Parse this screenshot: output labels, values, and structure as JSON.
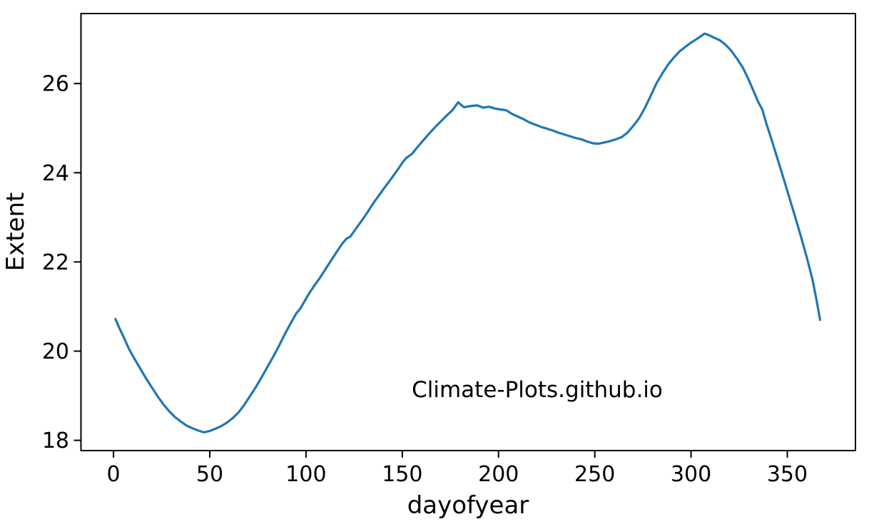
{
  "chart_data": {
    "type": "line",
    "title": "",
    "xlabel": "dayofyear",
    "ylabel": "Extent",
    "annotation": "Climate-Plots.github.io",
    "line_color": "#1f77b4",
    "axis_color": "#000000",
    "background_color": "#ffffff",
    "grid": false,
    "legend": "none",
    "xlim": [
      -16.9,
      385.4
    ],
    "ylim": [
      17.77,
      27.57
    ],
    "xticks": [
      0,
      50,
      100,
      150,
      200,
      250,
      300,
      350
    ],
    "yticks": [
      18,
      20,
      22,
      24,
      26
    ],
    "series": [
      {
        "name": "Extent",
        "points": [
          [
            1,
            20.72
          ],
          [
            3,
            20.52
          ],
          [
            5,
            20.34
          ],
          [
            8,
            20.05
          ],
          [
            11,
            19.82
          ],
          [
            14,
            19.6
          ],
          [
            17,
            19.38
          ],
          [
            20,
            19.18
          ],
          [
            23,
            18.98
          ],
          [
            26,
            18.8
          ],
          [
            29,
            18.65
          ],
          [
            32,
            18.52
          ],
          [
            35,
            18.42
          ],
          [
            38,
            18.33
          ],
          [
            41,
            18.27
          ],
          [
            44,
            18.22
          ],
          [
            47,
            18.18
          ],
          [
            50,
            18.21
          ],
          [
            53,
            18.26
          ],
          [
            56,
            18.32
          ],
          [
            59,
            18.4
          ],
          [
            62,
            18.5
          ],
          [
            65,
            18.63
          ],
          [
            68,
            18.8
          ],
          [
            71,
            19.0
          ],
          [
            74,
            19.2
          ],
          [
            77,
            19.42
          ],
          [
            80,
            19.65
          ],
          [
            83,
            19.88
          ],
          [
            86,
            20.12
          ],
          [
            89,
            20.38
          ],
          [
            92,
            20.62
          ],
          [
            95,
            20.85
          ],
          [
            97,
            20.95
          ],
          [
            99,
            21.1
          ],
          [
            101,
            21.25
          ],
          [
            104,
            21.45
          ],
          [
            107,
            21.63
          ],
          [
            110,
            21.83
          ],
          [
            113,
            22.03
          ],
          [
            116,
            22.23
          ],
          [
            119,
            22.42
          ],
          [
            121,
            22.52
          ],
          [
            123,
            22.57
          ],
          [
            126,
            22.75
          ],
          [
            129,
            22.93
          ],
          [
            132,
            23.12
          ],
          [
            135,
            23.32
          ],
          [
            138,
            23.5
          ],
          [
            141,
            23.68
          ],
          [
            144,
            23.85
          ],
          [
            147,
            24.03
          ],
          [
            150,
            24.22
          ],
          [
            152,
            24.33
          ],
          [
            155,
            24.42
          ],
          [
            158,
            24.58
          ],
          [
            161,
            24.73
          ],
          [
            164,
            24.88
          ],
          [
            167,
            25.02
          ],
          [
            170,
            25.15
          ],
          [
            173,
            25.28
          ],
          [
            176,
            25.4
          ],
          [
            179,
            25.58
          ],
          [
            182,
            25.47
          ],
          [
            186,
            25.5
          ],
          [
            189,
            25.51
          ],
          [
            192,
            25.46
          ],
          [
            195,
            25.48
          ],
          [
            198,
            25.44
          ],
          [
            201,
            25.42
          ],
          [
            204,
            25.4
          ],
          [
            207,
            25.32
          ],
          [
            210,
            25.26
          ],
          [
            213,
            25.2
          ],
          [
            216,
            25.13
          ],
          [
            219,
            25.08
          ],
          [
            222,
            25.03
          ],
          [
            225,
            24.99
          ],
          [
            228,
            24.95
          ],
          [
            231,
            24.9
          ],
          [
            234,
            24.86
          ],
          [
            237,
            24.82
          ],
          [
            240,
            24.78
          ],
          [
            243,
            24.75
          ],
          [
            246,
            24.7
          ],
          [
            249,
            24.66
          ],
          [
            252,
            24.65
          ],
          [
            255,
            24.68
          ],
          [
            258,
            24.71
          ],
          [
            261,
            24.75
          ],
          [
            264,
            24.8
          ],
          [
            267,
            24.9
          ],
          [
            270,
            25.05
          ],
          [
            273,
            25.22
          ],
          [
            276,
            25.45
          ],
          [
            279,
            25.72
          ],
          [
            282,
            26.0
          ],
          [
            285,
            26.22
          ],
          [
            288,
            26.42
          ],
          [
            291,
            26.58
          ],
          [
            294,
            26.72
          ],
          [
            297,
            26.82
          ],
          [
            300,
            26.92
          ],
          [
            303,
            27.0
          ],
          [
            305,
            27.06
          ],
          [
            307,
            27.12
          ],
          [
            309,
            27.09
          ],
          [
            312,
            27.03
          ],
          [
            315,
            26.97
          ],
          [
            318,
            26.87
          ],
          [
            321,
            26.73
          ],
          [
            324,
            26.55
          ],
          [
            327,
            26.35
          ],
          [
            330,
            26.08
          ],
          [
            333,
            25.78
          ],
          [
            335,
            25.58
          ],
          [
            337,
            25.42
          ],
          [
            339,
            25.12
          ],
          [
            342,
            24.72
          ],
          [
            345,
            24.3
          ],
          [
            348,
            23.88
          ],
          [
            351,
            23.45
          ],
          [
            354,
            23.02
          ],
          [
            357,
            22.58
          ],
          [
            360,
            22.12
          ],
          [
            363,
            21.62
          ],
          [
            365,
            21.18
          ],
          [
            366,
            20.95
          ],
          [
            367,
            20.7
          ]
        ]
      }
    ]
  }
}
